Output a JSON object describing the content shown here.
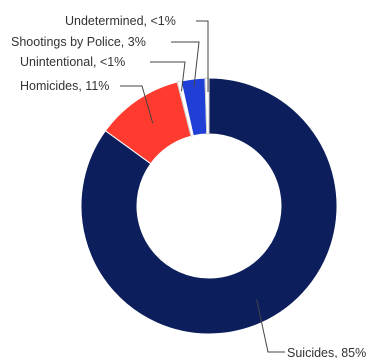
{
  "chart_data": {
    "type": "pie",
    "donut": true,
    "title": "",
    "start": "top",
    "direction": "clockwise",
    "slices": [
      {
        "key": "suicides",
        "label": "Suicides, 85%",
        "value": 85,
        "color": "#0c1f5c"
      },
      {
        "key": "homicides",
        "label": "Homicides, 11%",
        "value": 11,
        "color": "#ff3b2f"
      },
      {
        "key": "unintentional",
        "label": "Unintentional, <1%",
        "value": 0.5,
        "color": "#ffffff"
      },
      {
        "key": "police",
        "label": "Shootings by Police, 3%",
        "value": 3,
        "color": "#1f3fd6"
      },
      {
        "key": "undetermined",
        "label": "Undetermined, <1%",
        "value": 0.5,
        "color": "#ffffff"
      }
    ]
  }
}
